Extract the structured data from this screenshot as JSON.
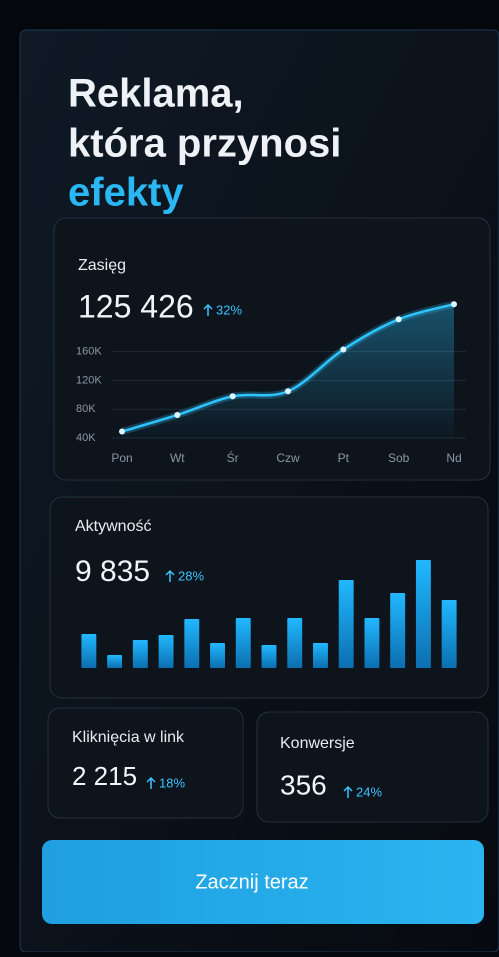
{
  "header": {
    "title_line1": "Reklama,",
    "title_line2": "która przynosi",
    "title_highlight": "efekty"
  },
  "chart_data": [
    {
      "type": "line",
      "title": "Zasięg",
      "total": "125 426",
      "change": "32%",
      "categories": [
        "Pon",
        "Wt",
        "Śr",
        "Czw",
        "Pt",
        "Sob",
        "Nd"
      ],
      "values": [
        49000,
        72000,
        98000,
        105000,
        163000,
        205000,
        226000
      ],
      "ylim": [
        40000,
        236000
      ],
      "yticks": [
        {
          "value": 40000,
          "label": "40K"
        },
        {
          "value": 80000,
          "label": "80K"
        },
        {
          "value": 120000,
          "label": "120K"
        },
        {
          "value": 160000,
          "label": "160K"
        }
      ],
      "color": "#2ec5ff",
      "grid": true
    },
    {
      "type": "bar",
      "title": "Aktywność",
      "total": "9 835",
      "change": "28%",
      "values": [
        34,
        13,
        28,
        33,
        49,
        25,
        50,
        23,
        50,
        25,
        88,
        50,
        75,
        108,
        68
      ],
      "color": "#18a8ec"
    }
  ],
  "stats": [
    {
      "label": "Kliknięcia w link",
      "value": "2 215",
      "change": "18%"
    },
    {
      "label": "Konwersje",
      "value": "356",
      "change": "24%"
    }
  ],
  "button": {
    "label": "Zacznij teraz"
  }
}
